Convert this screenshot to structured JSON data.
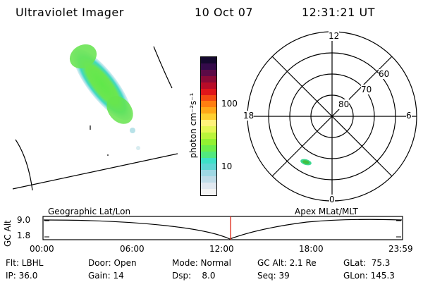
{
  "header": {
    "instrument": "Ultraviolet Imager",
    "date": "10 Oct 07",
    "time": "12:31:21 UT"
  },
  "colorbar": {
    "unit_label": "photon cm⁻²s⁻¹",
    "ticks": [
      "100",
      "10"
    ],
    "colors": [
      "#f4f4f4",
      "#e0e8f0",
      "#c0dce8",
      "#9fd8e4",
      "#5fd6d4",
      "#3ee0c8",
      "#52e87e",
      "#6cee4c",
      "#92f232",
      "#baf53a",
      "#e4f654",
      "#fff27a",
      "#ffd030",
      "#ffa818",
      "#ff7e10",
      "#f44a12",
      "#e0161a",
      "#b80c28",
      "#8a0a36",
      "#5c0a46",
      "#340a4a",
      "#14082e"
    ]
  },
  "polar": {
    "mlt_labels": {
      "top": "12",
      "right": "6",
      "left": "18",
      "bottom": "0"
    },
    "lat_labels": [
      "60",
      "70",
      "80"
    ]
  },
  "timeline": {
    "left_title": "Geographic Lat/Lon",
    "right_title": "Apex MLat/MLT",
    "ylabel": "GC Alt",
    "y_ticks": [
      "9.0",
      "1.8"
    ],
    "x_ticks": [
      "00:00",
      "06:00",
      "12:00",
      "18:00",
      "23:59"
    ],
    "marker_time": "12:31",
    "marker_color": "#e03020"
  },
  "status": {
    "flt": "Flt: LBHL",
    "door": "Door: Open",
    "mode": "Mode: Normal",
    "gc_alt": "GC Alt: 2.1 Re",
    "glat": "GLat:  75.3",
    "ip": "IP: 36.0",
    "gain": "Gain: 14",
    "dsp": "Dsp:    8.0",
    "seq": "Seq: 39",
    "glon": "GLon: 145.3"
  }
}
